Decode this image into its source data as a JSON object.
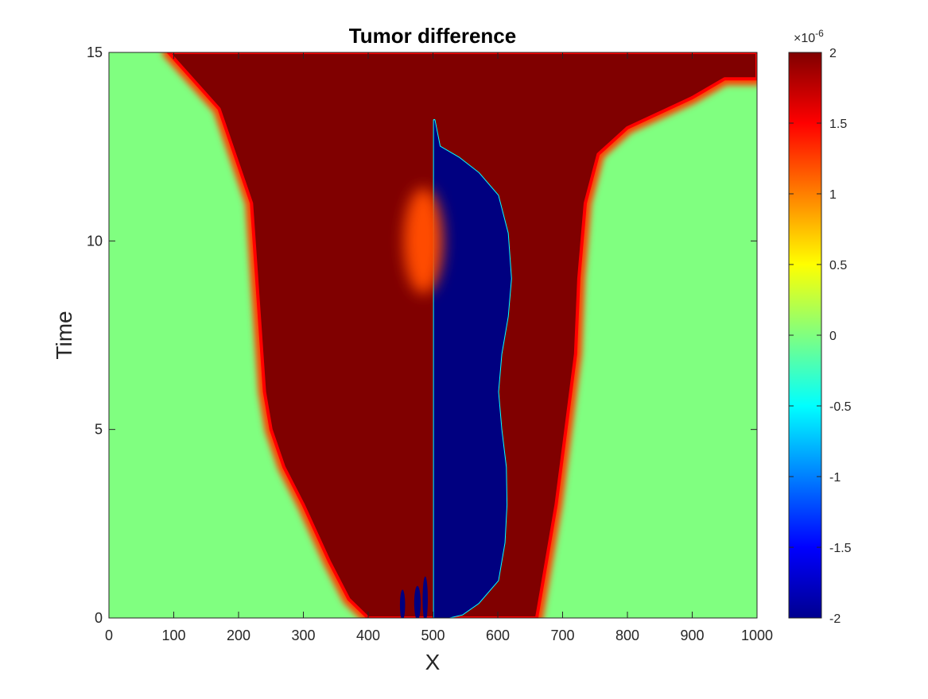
{
  "chart_data": {
    "type": "heatmap",
    "title": "Tumor difference",
    "xlabel": "X",
    "ylabel": "Time",
    "xlim": [
      0,
      1000
    ],
    "ylim": [
      0,
      15
    ],
    "xticks": [
      0,
      100,
      200,
      300,
      400,
      500,
      600,
      700,
      800,
      900,
      1000
    ],
    "yticks": [
      0,
      5,
      10,
      15
    ],
    "colormap": "jet",
    "clim": [
      -2,
      2
    ],
    "colorbar": {
      "ticks": [
        -2,
        -1.5,
        -1,
        -0.5,
        0,
        0.5,
        1,
        1.5,
        2
      ],
      "tick_labels": [
        "-2",
        "-1.5",
        "-1",
        "-0.5",
        "0",
        "0.5",
        "1",
        "1.5",
        "2"
      ],
      "multiplier_label": "×10",
      "multiplier_exponent": "-6"
    },
    "background_value": 0,
    "regions": [
      {
        "name": "positive-region",
        "value": 2,
        "boundary": [
          [
            92,
            15
          ],
          [
            170,
            13.5
          ],
          [
            220,
            11
          ],
          [
            232,
            8
          ],
          [
            240,
            6
          ],
          [
            250,
            5
          ],
          [
            270,
            4
          ],
          [
            300,
            3
          ],
          [
            340,
            1.5
          ],
          [
            370,
            0.5
          ],
          [
            400,
            0
          ],
          [
            660,
            0
          ],
          [
            670,
            1
          ],
          [
            690,
            3
          ],
          [
            705,
            5
          ],
          [
            720,
            7
          ],
          [
            725,
            9
          ],
          [
            735,
            11
          ],
          [
            755,
            12.3
          ],
          [
            800,
            13
          ],
          [
            900,
            13.8
          ],
          [
            950,
            14.3
          ],
          [
            1000,
            14.3
          ],
          [
            1000,
            15
          ]
        ]
      },
      {
        "name": "negative-region",
        "value": -2,
        "boundary": [
          [
            502,
            13.2
          ],
          [
            510,
            12.5
          ],
          [
            540,
            12.2
          ],
          [
            570,
            11.8
          ],
          [
            600,
            11.2
          ],
          [
            615,
            10.2
          ],
          [
            620,
            9
          ],
          [
            615,
            8
          ],
          [
            605,
            7
          ],
          [
            600,
            6
          ],
          [
            605,
            5
          ],
          [
            612,
            4
          ],
          [
            613,
            3
          ],
          [
            610,
            2
          ],
          [
            600,
            1
          ],
          [
            570,
            0.4
          ],
          [
            545,
            0.1
          ],
          [
            520,
            0
          ],
          [
            502,
            0
          ]
        ]
      },
      {
        "name": "mid-positive-blob",
        "value": 1.2,
        "center": [
          485,
          10
        ],
        "radius": [
          30,
          1.4
        ]
      },
      {
        "name": "negative-spike",
        "value": -2,
        "center": [
          453,
          0.35
        ],
        "radius": [
          4,
          0.4
        ]
      },
      {
        "name": "negative-spike",
        "value": -2,
        "center": [
          476,
          0.4
        ],
        "radius": [
          5,
          0.45
        ]
      },
      {
        "name": "negative-spike",
        "value": -2,
        "center": [
          488,
          0.5
        ],
        "radius": [
          4,
          0.6
        ]
      }
    ]
  }
}
